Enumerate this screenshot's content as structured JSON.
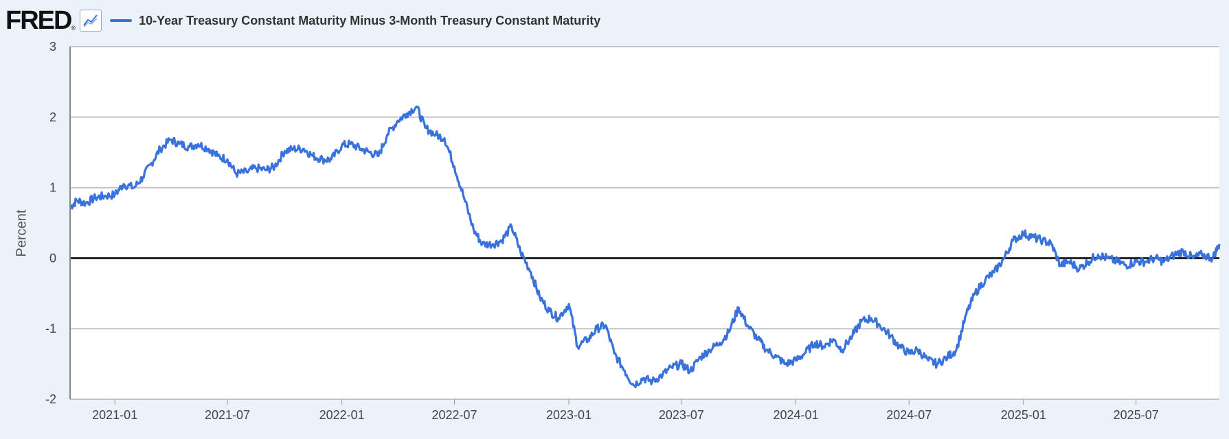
{
  "header": {
    "logo": "FRED",
    "logo_mark": "®",
    "icon": "line-graph-icon",
    "series_label": "10-Year Treasury Constant Maturity Minus 3-Month Treasury Constant Maturity"
  },
  "colors": {
    "series": "#3a72dc",
    "zero_line": "#000000",
    "grid": "#c4c4c4",
    "background": "#ecf2fa",
    "plot": "#ffffff"
  },
  "chart_data": {
    "type": "line",
    "title": "10-Year Treasury Constant Maturity Minus 3-Month Treasury Constant Maturity",
    "xlabel": "",
    "ylabel": "Percent",
    "ylim": [
      -2,
      3
    ],
    "xlim": [
      "2020-10-21",
      "2025-11-12"
    ],
    "yticks": [
      3,
      2,
      1,
      0,
      -1,
      -2
    ],
    "ytick_labels": [
      "3",
      "2",
      "1",
      "0",
      "-1",
      "-2"
    ],
    "xticks": [
      "2021-01",
      "2021-07",
      "2022-01",
      "2022-07",
      "2023-01",
      "2023-07",
      "2024-01",
      "2024-07",
      "2025-01",
      "2025-07"
    ],
    "grid": true,
    "series": [
      {
        "name": "10-Year Treasury Constant Maturity Minus 3-Month Treasury Constant Maturity",
        "x": [
          "2020-10-21",
          "2020-11-01",
          "2020-11-15",
          "2020-12-01",
          "2020-12-15",
          "2021-01-01",
          "2021-01-15",
          "2021-02-01",
          "2021-02-15",
          "2021-03-01",
          "2021-03-15",
          "2021-04-01",
          "2021-04-15",
          "2021-05-01",
          "2021-05-15",
          "2021-06-01",
          "2021-06-15",
          "2021-07-01",
          "2021-07-15",
          "2021-08-01",
          "2021-08-15",
          "2021-09-01",
          "2021-09-15",
          "2021-10-01",
          "2021-10-15",
          "2021-11-01",
          "2021-11-15",
          "2021-12-01",
          "2021-12-15",
          "2022-01-01",
          "2022-01-15",
          "2022-02-01",
          "2022-02-15",
          "2022-03-01",
          "2022-03-15",
          "2022-04-01",
          "2022-04-15",
          "2022-05-01",
          "2022-05-15",
          "2022-06-01",
          "2022-06-15",
          "2022-07-01",
          "2022-07-15",
          "2022-08-01",
          "2022-08-15",
          "2022-09-01",
          "2022-09-15",
          "2022-10-01",
          "2022-10-15",
          "2022-11-01",
          "2022-11-15",
          "2022-12-01",
          "2022-12-15",
          "2023-01-01",
          "2023-01-15",
          "2023-02-01",
          "2023-02-15",
          "2023-03-01",
          "2023-03-15",
          "2023-04-01",
          "2023-04-15",
          "2023-05-01",
          "2023-05-15",
          "2023-06-01",
          "2023-06-15",
          "2023-07-01",
          "2023-07-15",
          "2023-08-01",
          "2023-08-15",
          "2023-09-01",
          "2023-09-15",
          "2023-10-01",
          "2023-10-15",
          "2023-11-01",
          "2023-11-15",
          "2023-12-01",
          "2023-12-15",
          "2024-01-01",
          "2024-01-15",
          "2024-02-01",
          "2024-02-15",
          "2024-03-01",
          "2024-03-15",
          "2024-04-01",
          "2024-04-15",
          "2024-05-01",
          "2024-05-15",
          "2024-06-01",
          "2024-06-15",
          "2024-07-01",
          "2024-07-15",
          "2024-08-01",
          "2024-08-15",
          "2024-09-01",
          "2024-09-15",
          "2024-10-01",
          "2024-10-15",
          "2024-11-01",
          "2024-11-15",
          "2024-12-01",
          "2024-12-15",
          "2025-01-01",
          "2025-01-15",
          "2025-02-01",
          "2025-02-15",
          "2025-03-01",
          "2025-03-15",
          "2025-04-01",
          "2025-04-15",
          "2025-05-01",
          "2025-05-15",
          "2025-06-01",
          "2025-06-15",
          "2025-07-01",
          "2025-07-15",
          "2025-08-01",
          "2025-08-15",
          "2025-09-01",
          "2025-09-15",
          "2025-10-01",
          "2025-10-15",
          "2025-11-01",
          "2025-11-12"
        ],
        "y": [
          0.72,
          0.82,
          0.78,
          0.86,
          0.88,
          0.9,
          1.05,
          1.0,
          1.15,
          1.35,
          1.55,
          1.68,
          1.62,
          1.58,
          1.62,
          1.55,
          1.45,
          1.4,
          1.2,
          1.22,
          1.28,
          1.25,
          1.3,
          1.52,
          1.55,
          1.55,
          1.45,
          1.4,
          1.4,
          1.6,
          1.62,
          1.55,
          1.5,
          1.45,
          1.75,
          1.95,
          2.05,
          2.15,
          1.85,
          1.75,
          1.7,
          1.3,
          0.9,
          0.4,
          0.2,
          0.2,
          0.25,
          0.45,
          0.1,
          -0.2,
          -0.55,
          -0.75,
          -0.85,
          -0.65,
          -1.25,
          -1.15,
          -1.0,
          -0.95,
          -1.35,
          -1.6,
          -1.8,
          -1.7,
          -1.75,
          -1.65,
          -1.55,
          -1.5,
          -1.6,
          -1.4,
          -1.3,
          -1.2,
          -1.05,
          -0.7,
          -0.95,
          -1.15,
          -1.3,
          -1.4,
          -1.5,
          -1.45,
          -1.35,
          -1.2,
          -1.25,
          -1.15,
          -1.3,
          -1.1,
          -0.9,
          -0.85,
          -0.95,
          -1.1,
          -1.25,
          -1.35,
          -1.3,
          -1.45,
          -1.5,
          -1.4,
          -1.3,
          -0.8,
          -0.5,
          -0.3,
          -0.2,
          0.0,
          0.25,
          0.35,
          0.3,
          0.25,
          0.2,
          -0.1,
          -0.05,
          -0.15,
          -0.05,
          0.05,
          0.0,
          -0.05,
          -0.1,
          -0.05,
          -0.05,
          0.0,
          -0.05,
          0.05,
          0.1,
          0.0,
          0.05,
          0.0,
          0.2
        ]
      }
    ]
  }
}
